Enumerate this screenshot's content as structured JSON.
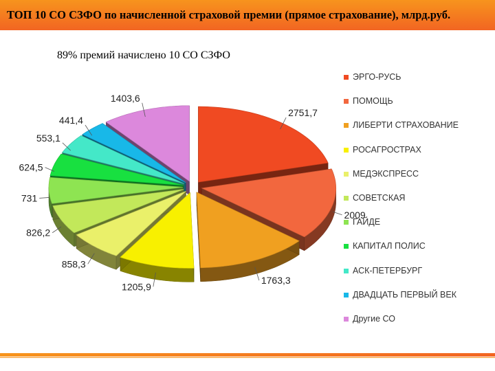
{
  "header": {
    "title": "ТОП 10 СО СЗФО по начисленной страховой премии (прямое страхование), млрд.руб."
  },
  "subtitle": "89%  премий начислено 10 СО СЗФО",
  "colors": {
    "header": "#f26522",
    "ЭРГО-РУСЬ": "#f04a22",
    "ПОМОЩЬ": "#f2673e",
    "ЛИБЕРТИ СТРАХОВАНИЕ": "#f0a020",
    "РОСАГРОСТРАХ": "#f8f000",
    "МЕДЭКСПРЕСС": "#eaf06a",
    "СОВЕТСКАЯ": "#c2e85a",
    "ГАЙДЕ": "#8ee452",
    "КАПИТАЛ ПОЛИС": "#18e040",
    "АСК-ПЕТЕРБУРГ": "#44e8c8",
    "ДВАДЦАТЬ ПЕРВЫЙ ВЕК": "#18b8e8",
    "Другие СО": "#dc88dc"
  },
  "chart_data": {
    "type": "pie",
    "style": "3d-exploded",
    "legend_position": "right",
    "categories": [
      "ЭРГО-РУСЬ",
      "ПОМОЩЬ",
      "ЛИБЕРТИ СТРАХОВАНИЕ",
      "РОСАГРОСТРАХ",
      "МЕДЭКСПРЕСС",
      "СОВЕТСКАЯ",
      "ГАЙДЕ",
      "КАПИТАЛ ПОЛИС",
      "АСК-ПЕТЕРБУРГ",
      "ДВАДЦАТЬ ПЕРВЫЙ ВЕК",
      "Другие СО"
    ],
    "values": [
      2751.7,
      2009,
      1763.3,
      1205.9,
      858.3,
      826.2,
      731,
      624.5,
      553.1,
      441.4,
      1403.6
    ],
    "labels": [
      "2751,7",
      "2009",
      "1763,3",
      "1205,9",
      "858,3",
      "826,2",
      "731",
      "624,5",
      "553,1",
      "441,4",
      "1403,6"
    ]
  }
}
